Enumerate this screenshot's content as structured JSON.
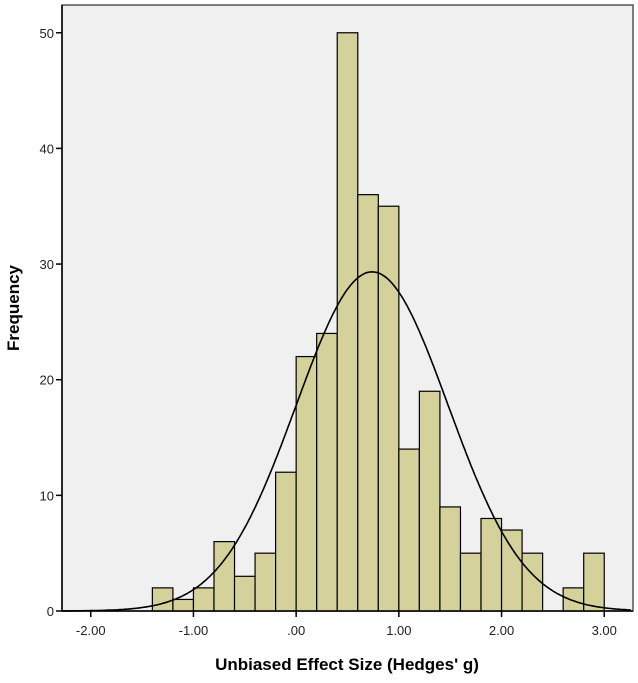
{
  "chart_data": {
    "type": "bar",
    "subtype": "histogram",
    "title": "",
    "xlabel": "Unbiased Effect Size (Hedges' g)",
    "ylabel": "Frequency",
    "xlim": [
      -2.28,
      3.28
    ],
    "ylim": [
      0,
      52.4
    ],
    "x_ticks": [
      -2,
      -1,
      0,
      1,
      2,
      3
    ],
    "x_tick_labels": [
      "-2.00",
      "-1.00",
      ".00",
      "1.00",
      "2.00",
      "3.00"
    ],
    "y_ticks": [
      0,
      10,
      20,
      30,
      40,
      50
    ],
    "y_tick_labels": [
      "0",
      "10",
      "20",
      "30",
      "40",
      "50"
    ],
    "bin_start": -1.4,
    "bin_width": 0.2,
    "values": [
      2,
      1,
      2,
      6,
      3,
      5,
      12,
      22,
      24,
      50,
      36,
      35,
      14,
      19,
      9,
      5,
      8,
      7,
      5,
      0,
      2,
      5
    ],
    "normal_curve": {
      "mean": 0.74,
      "sd": 0.74,
      "n": 272
    },
    "grid": false,
    "colors": {
      "bar": "#d4d29a",
      "plot_bg": "#f0f0f0",
      "stroke": "#000000"
    }
  }
}
